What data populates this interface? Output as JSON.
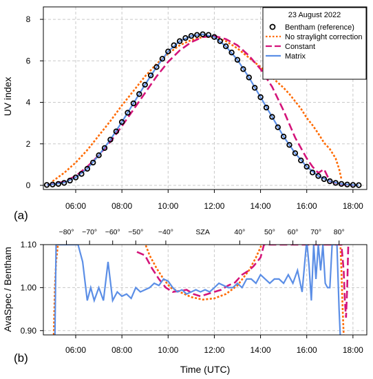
{
  "chart_data": [
    {
      "id": "a",
      "panel_label": "(a)",
      "type": "line",
      "ylabel": "UV index",
      "xlim_hours": [
        4.6,
        18.6
      ],
      "ylim": [
        -0.2,
        8.6
      ],
      "yticks": [
        "0",
        "2",
        "4",
        "6",
        "8"
      ],
      "grid": true,
      "legend": {
        "position": "top-right",
        "title": "23 August 2022",
        "entries": [
          {
            "label": "Bentham (reference)",
            "style": "circles",
            "color": "#000000"
          },
          {
            "label": "No straylight correction",
            "style": "dotted",
            "color": "#ff6a00"
          },
          {
            "label": "Constant",
            "style": "dashed",
            "color": "#d4147a"
          },
          {
            "label": "Matrix",
            "style": "solid",
            "color": "#5b8ee6"
          }
        ]
      },
      "series": [
        {
          "name": "Bentham (reference)",
          "x": [
            4.75,
            5.0,
            5.25,
            5.5,
            5.75,
            6.0,
            6.25,
            6.5,
            6.75,
            7.0,
            7.25,
            7.5,
            7.75,
            8.0,
            8.25,
            8.5,
            8.75,
            9.0,
            9.25,
            9.5,
            9.75,
            10.0,
            10.25,
            10.5,
            10.75,
            11.0,
            11.25,
            11.5,
            11.75,
            12.0,
            12.25,
            12.5,
            12.75,
            13.0,
            13.25,
            13.5,
            13.75,
            14.0,
            14.25,
            14.5,
            14.75,
            15.0,
            15.25,
            15.5,
            15.75,
            16.0,
            16.25,
            16.5,
            16.75,
            17.0,
            17.25,
            17.5,
            17.75,
            18.0,
            18.25
          ],
          "y": [
            0.02,
            0.04,
            0.07,
            0.12,
            0.23,
            0.38,
            0.55,
            0.8,
            1.1,
            1.45,
            1.8,
            2.2,
            2.6,
            3.05,
            3.5,
            3.95,
            4.4,
            4.85,
            5.3,
            5.7,
            6.1,
            6.45,
            6.75,
            6.95,
            7.1,
            7.2,
            7.25,
            7.28,
            7.25,
            7.15,
            6.95,
            6.7,
            6.4,
            6.05,
            5.6,
            5.2,
            4.7,
            4.25,
            3.75,
            3.3,
            2.8,
            2.35,
            1.95,
            1.55,
            1.2,
            0.9,
            0.62,
            0.45,
            0.3,
            0.2,
            0.12,
            0.07,
            0.04,
            0.02,
            0.01
          ]
        },
        {
          "name": "No straylight correction",
          "x": [
            5.0,
            5.5,
            6.0,
            6.5,
            7.0,
            7.5,
            8.0,
            8.5,
            9.0,
            9.5,
            10.0,
            10.5,
            11.0,
            11.5,
            12.0,
            12.5,
            13.0,
            13.5,
            14.0,
            14.5,
            15.0,
            15.25,
            15.5,
            15.75,
            16.0,
            16.25,
            16.5,
            16.75,
            17.0,
            17.25,
            17.4,
            17.5
          ],
          "y": [
            0.2,
            0.6,
            1.1,
            1.7,
            2.4,
            3.1,
            3.85,
            4.55,
            5.25,
            5.85,
            6.35,
            6.75,
            7.0,
            7.15,
            7.15,
            6.95,
            6.6,
            6.15,
            5.7,
            5.2,
            4.7,
            4.4,
            4.05,
            3.7,
            3.25,
            2.9,
            2.5,
            2.05,
            1.75,
            1.3,
            0.8,
            0.3
          ]
        },
        {
          "name": "Constant",
          "x": [
            4.75,
            5.0,
            5.5,
            6.0,
            6.5,
            7.0,
            7.5,
            8.0,
            8.5,
            9.0,
            9.5,
            10.0,
            10.5,
            11.0,
            11.5,
            12.0,
            12.5,
            13.0,
            13.5,
            14.0,
            14.5,
            15.0,
            15.5,
            16.0,
            16.25,
            16.5,
            16.75,
            17.0,
            17.25,
            17.5,
            17.75,
            18.0
          ],
          "y": [
            0.02,
            0.06,
            0.18,
            0.45,
            0.9,
            1.45,
            2.1,
            2.85,
            3.65,
            4.45,
            5.25,
            5.95,
            6.5,
            6.9,
            7.15,
            7.2,
            7.05,
            6.75,
            6.25,
            5.6,
            4.75,
            3.6,
            2.3,
            1.3,
            0.9,
            0.6,
            0.78,
            0.2,
            0.12,
            0.06,
            0.03,
            0.01
          ]
        },
        {
          "name": "Matrix",
          "x": [
            4.75,
            5.0,
            5.5,
            6.0,
            6.5,
            7.0,
            7.5,
            8.0,
            8.5,
            9.0,
            9.5,
            10.0,
            10.5,
            11.0,
            11.5,
            12.0,
            12.5,
            13.0,
            13.5,
            14.0,
            14.5,
            15.0,
            15.5,
            16.0,
            16.5,
            17.0,
            17.5,
            18.0,
            18.25
          ],
          "y": [
            0.02,
            0.05,
            0.13,
            0.38,
            0.8,
            1.45,
            2.2,
            3.05,
            3.95,
            4.85,
            5.7,
            6.45,
            6.95,
            7.2,
            7.28,
            7.15,
            6.7,
            6.05,
            5.2,
            4.25,
            3.3,
            2.35,
            1.55,
            0.9,
            0.45,
            0.2,
            0.07,
            0.02,
            0.01
          ]
        }
      ]
    },
    {
      "id": "b",
      "panel_label": "(b)",
      "type": "line",
      "xlabel": "Time (UTC)",
      "ylabel": "AvaSpec / Bentham",
      "xticks": [
        "06:00",
        "08:00",
        "10:00",
        "12:00",
        "14:00",
        "16:00",
        "18:00"
      ],
      "xtick_hours": [
        6,
        8,
        10,
        12,
        14,
        16,
        18
      ],
      "xlim_hours": [
        4.6,
        18.6
      ],
      "ylim": [
        0.89,
        1.1
      ],
      "yticks": [
        "0.90",
        "1.00",
        "1.10"
      ],
      "ytick_values": [
        0.9,
        1.0,
        1.1
      ],
      "grid": true,
      "sza_axis": {
        "title": "SZA",
        "title_hour": 11.5,
        "ticks": [
          {
            "label": "−80°",
            "hour": 5.6
          },
          {
            "label": "−70°",
            "hour": 6.6
          },
          {
            "label": "−60°",
            "hour": 7.6
          },
          {
            "label": "−50°",
            "hour": 8.6
          },
          {
            "label": "−40°",
            "hour": 9.9
          },
          {
            "label": "40°",
            "hour": 13.1
          },
          {
            "label": "50°",
            "hour": 14.4
          },
          {
            "label": "60°",
            "hour": 15.4
          },
          {
            "label": "70°",
            "hour": 16.4
          },
          {
            "label": "80°",
            "hour": 17.4
          }
        ]
      },
      "series": [
        {
          "name": "No straylight correction",
          "x": [
            5.05,
            5.1,
            5.15,
            5.25,
            8.95,
            9.2,
            9.5,
            9.8,
            10.1,
            10.5,
            11.0,
            11.5,
            12.0,
            12.5,
            13.0,
            13.5,
            13.8,
            14.05,
            14.2,
            17.45,
            17.5,
            17.55,
            17.6
          ],
          "y": [
            0.89,
            1.0,
            1.06,
            1.11,
            1.11,
            1.075,
            1.045,
            1.02,
            1.0,
            0.99,
            0.978,
            0.972,
            0.975,
            0.985,
            1.005,
            1.04,
            1.07,
            1.1,
            1.11,
            1.11,
            1.04,
            0.96,
            0.89
          ]
        },
        {
          "name": "Constant",
          "x": [
            8.65,
            9.0,
            9.3,
            9.6,
            9.9,
            10.2,
            10.5,
            10.8,
            11.1,
            11.4,
            11.7,
            12.0,
            12.3,
            12.6,
            12.9,
            13.2,
            13.5,
            13.7,
            14.0,
            14.15,
            17.5,
            17.6,
            17.65,
            17.7,
            17.75,
            17.8
          ],
          "y": [
            1.083,
            1.075,
            1.045,
            1.02,
            1.0,
            0.99,
            0.992,
            0.995,
            0.985,
            0.98,
            0.985,
            0.99,
            0.995,
            1.005,
            1.012,
            1.03,
            1.04,
            1.05,
            1.07,
            1.1,
            1.1,
            1.04,
            0.97,
            0.93,
            1.0,
            1.1
          ]
        },
        {
          "name": "Matrix",
          "x": [
            5.1,
            5.15,
            5.3,
            5.5,
            5.6,
            5.8,
            6.0,
            6.1,
            6.3,
            6.5,
            6.65,
            6.8,
            7.0,
            7.2,
            7.4,
            7.6,
            7.8,
            8.0,
            8.2,
            8.4,
            8.6,
            8.8,
            9.0,
            9.2,
            9.4,
            9.6,
            9.8,
            10.0,
            10.2,
            10.4,
            10.6,
            10.8,
            11.0,
            11.2,
            11.4,
            11.6,
            11.8,
            12.0,
            12.2,
            12.4,
            12.6,
            12.8,
            13.0,
            13.2,
            13.4,
            13.6,
            13.8,
            14.0,
            14.2,
            14.4,
            14.6,
            14.8,
            15.0,
            15.2,
            15.4,
            15.6,
            15.8,
            16.0,
            16.1,
            16.2,
            16.3,
            16.4,
            16.5,
            16.6,
            16.7,
            16.8,
            16.9,
            17.0,
            17.1,
            17.15,
            17.2,
            17.3,
            17.4,
            17.45
          ],
          "y": [
            0.89,
            1.1,
            1.1,
            1.1,
            1.1,
            1.1,
            1.1,
            1.1,
            1.06,
            0.97,
            1.0,
            0.97,
            1.0,
            0.97,
            1.06,
            0.97,
            0.99,
            0.98,
            0.985,
            0.975,
            1.0,
            0.99,
            0.995,
            1.0,
            1.01,
            1.005,
            1.02,
            1.015,
            1.0,
            0.99,
            0.995,
            0.985,
            0.99,
            0.995,
            0.99,
            0.995,
            0.99,
            1.0,
            1.01,
            1.005,
            1.0,
            1.0,
            1.01,
            1.0,
            1.02,
            1.02,
            1.01,
            1.03,
            1.02,
            1.01,
            1.02,
            1.02,
            1.01,
            1.03,
            1.01,
            1.04,
            0.99,
            1.11,
            1.05,
            0.97,
            1.1,
            1.02,
            1.1,
            1.04,
            1.1,
            1.01,
            1.0,
            1.0,
            1.1,
            1.1,
            1.1,
            1.11,
            0.95,
            0.89
          ]
        }
      ]
    }
  ]
}
